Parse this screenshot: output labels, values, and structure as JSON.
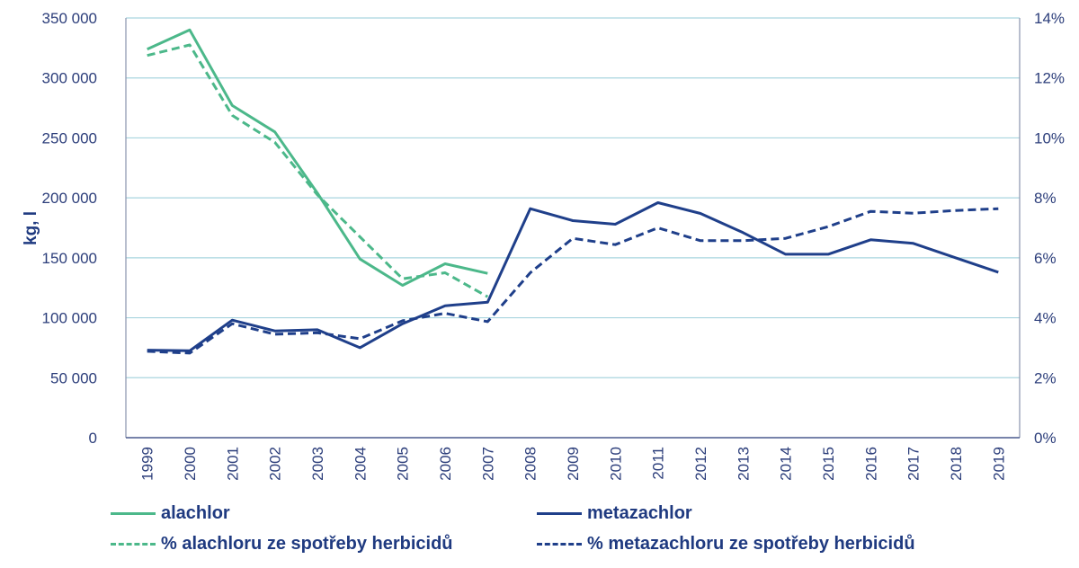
{
  "chart_data": {
    "type": "line",
    "title": "",
    "xlabel": "",
    "ylabel": "kg, l",
    "y2label": "",
    "ylim": [
      0,
      350000
    ],
    "y2lim": [
      0,
      14
    ],
    "grid": true,
    "legend_position": "bottom",
    "yticks": [
      "0",
      "50 000",
      "100 000",
      "150 000",
      "200 000",
      "250 000",
      "300 000",
      "350 000"
    ],
    "y2ticks": [
      "0%",
      "2%",
      "4%",
      "6%",
      "8%",
      "10%",
      "12%",
      "14%"
    ],
    "categories": [
      "1999",
      "2000",
      "2001",
      "2002",
      "2003",
      "2004",
      "2005",
      "2006",
      "2007",
      "2008",
      "2009",
      "2010",
      "2011",
      "2012",
      "2013",
      "2014",
      "2015",
      "2016",
      "2017",
      "2018",
      "2019"
    ],
    "series": [
      {
        "name": "alachlor",
        "axis": "left",
        "style": "solid",
        "color": "#4cb88a",
        "values": [
          324000,
          340000,
          277000,
          255000,
          204000,
          149000,
          127000,
          145000,
          137000,
          null,
          null,
          null,
          null,
          null,
          null,
          null,
          null,
          null,
          null,
          null,
          null
        ]
      },
      {
        "name": "metazachlor",
        "axis": "left",
        "style": "solid",
        "color": "#1f3f8a",
        "values": [
          73000,
          72500,
          98000,
          89000,
          90000,
          75000,
          95000,
          110000,
          113000,
          191000,
          181000,
          178000,
          196000,
          187000,
          171000,
          153000,
          153000,
          165000,
          162000,
          150000,
          138000
        ]
      },
      {
        "name": "% alachloru ze spotřeby herbicidů",
        "axis": "right",
        "style": "dashed",
        "color": "#4cb88a",
        "values": [
          12.75,
          13.1,
          10.75,
          9.85,
          8.1,
          6.7,
          5.3,
          5.5,
          4.7,
          null,
          null,
          null,
          null,
          null,
          null,
          null,
          null,
          null,
          null,
          null,
          null
        ]
      },
      {
        "name": "% metazachloru ze spotřeby herbicidů",
        "axis": "right",
        "style": "dashed",
        "color": "#1f3f8a",
        "values": [
          2.88,
          2.82,
          3.8,
          3.45,
          3.5,
          3.3,
          3.9,
          4.15,
          3.87,
          5.5,
          6.65,
          6.44,
          7.0,
          6.57,
          6.57,
          6.65,
          7.04,
          7.55,
          7.49,
          7.58,
          7.64
        ]
      }
    ]
  },
  "legend": {
    "items": [
      "alachlor",
      "metazachlor",
      "% alachloru ze spotřeby herbicidů",
      "% metazachloru ze spotřeby herbicidů"
    ]
  }
}
